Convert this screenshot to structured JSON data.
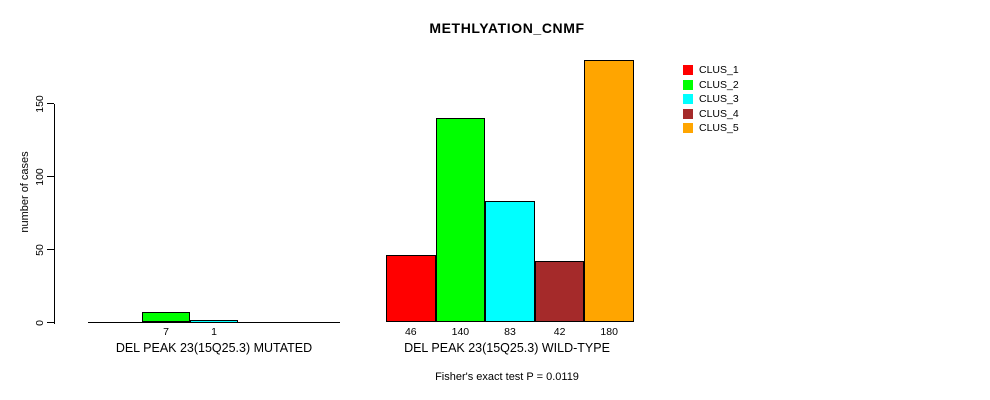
{
  "chart_data": {
    "type": "bar",
    "title": "METHLYATION_CNMF",
    "ylabel": "number of cases",
    "yticks": [
      0,
      50,
      100,
      150
    ],
    "ylim": [
      0,
      180
    ],
    "grid": false,
    "legend_position": "top-right-outside",
    "legend": [
      {
        "name": "CLUS_1",
        "color": "#ff0000"
      },
      {
        "name": "CLUS_2",
        "color": "#00ff00"
      },
      {
        "name": "CLUS_3",
        "color": "#00ffff"
      },
      {
        "name": "CLUS_4",
        "color": "#a52a2a"
      },
      {
        "name": "CLUS_5",
        "color": "#ffa500"
      }
    ],
    "groups": [
      {
        "label": "DEL PEAK 23(15Q25.3) MUTATED",
        "bars": [
          {
            "cluster": "CLUS_2",
            "value": 7,
            "label": "7"
          },
          {
            "cluster": "CLUS_3",
            "value": 1,
            "label": "1"
          }
        ]
      },
      {
        "label": "DEL PEAK 23(15Q25.3) WILD-TYPE",
        "bars": [
          {
            "cluster": "CLUS_1",
            "value": 46,
            "label": "46"
          },
          {
            "cluster": "CLUS_2",
            "value": 140,
            "label": "140"
          },
          {
            "cluster": "CLUS_3",
            "value": 83,
            "label": "83"
          },
          {
            "cluster": "CLUS_4",
            "value": 42,
            "label": "42"
          },
          {
            "cluster": "CLUS_5",
            "value": 180,
            "label": "180"
          }
        ]
      }
    ],
    "annotation": "Fisher's exact test P = 0.0119"
  }
}
